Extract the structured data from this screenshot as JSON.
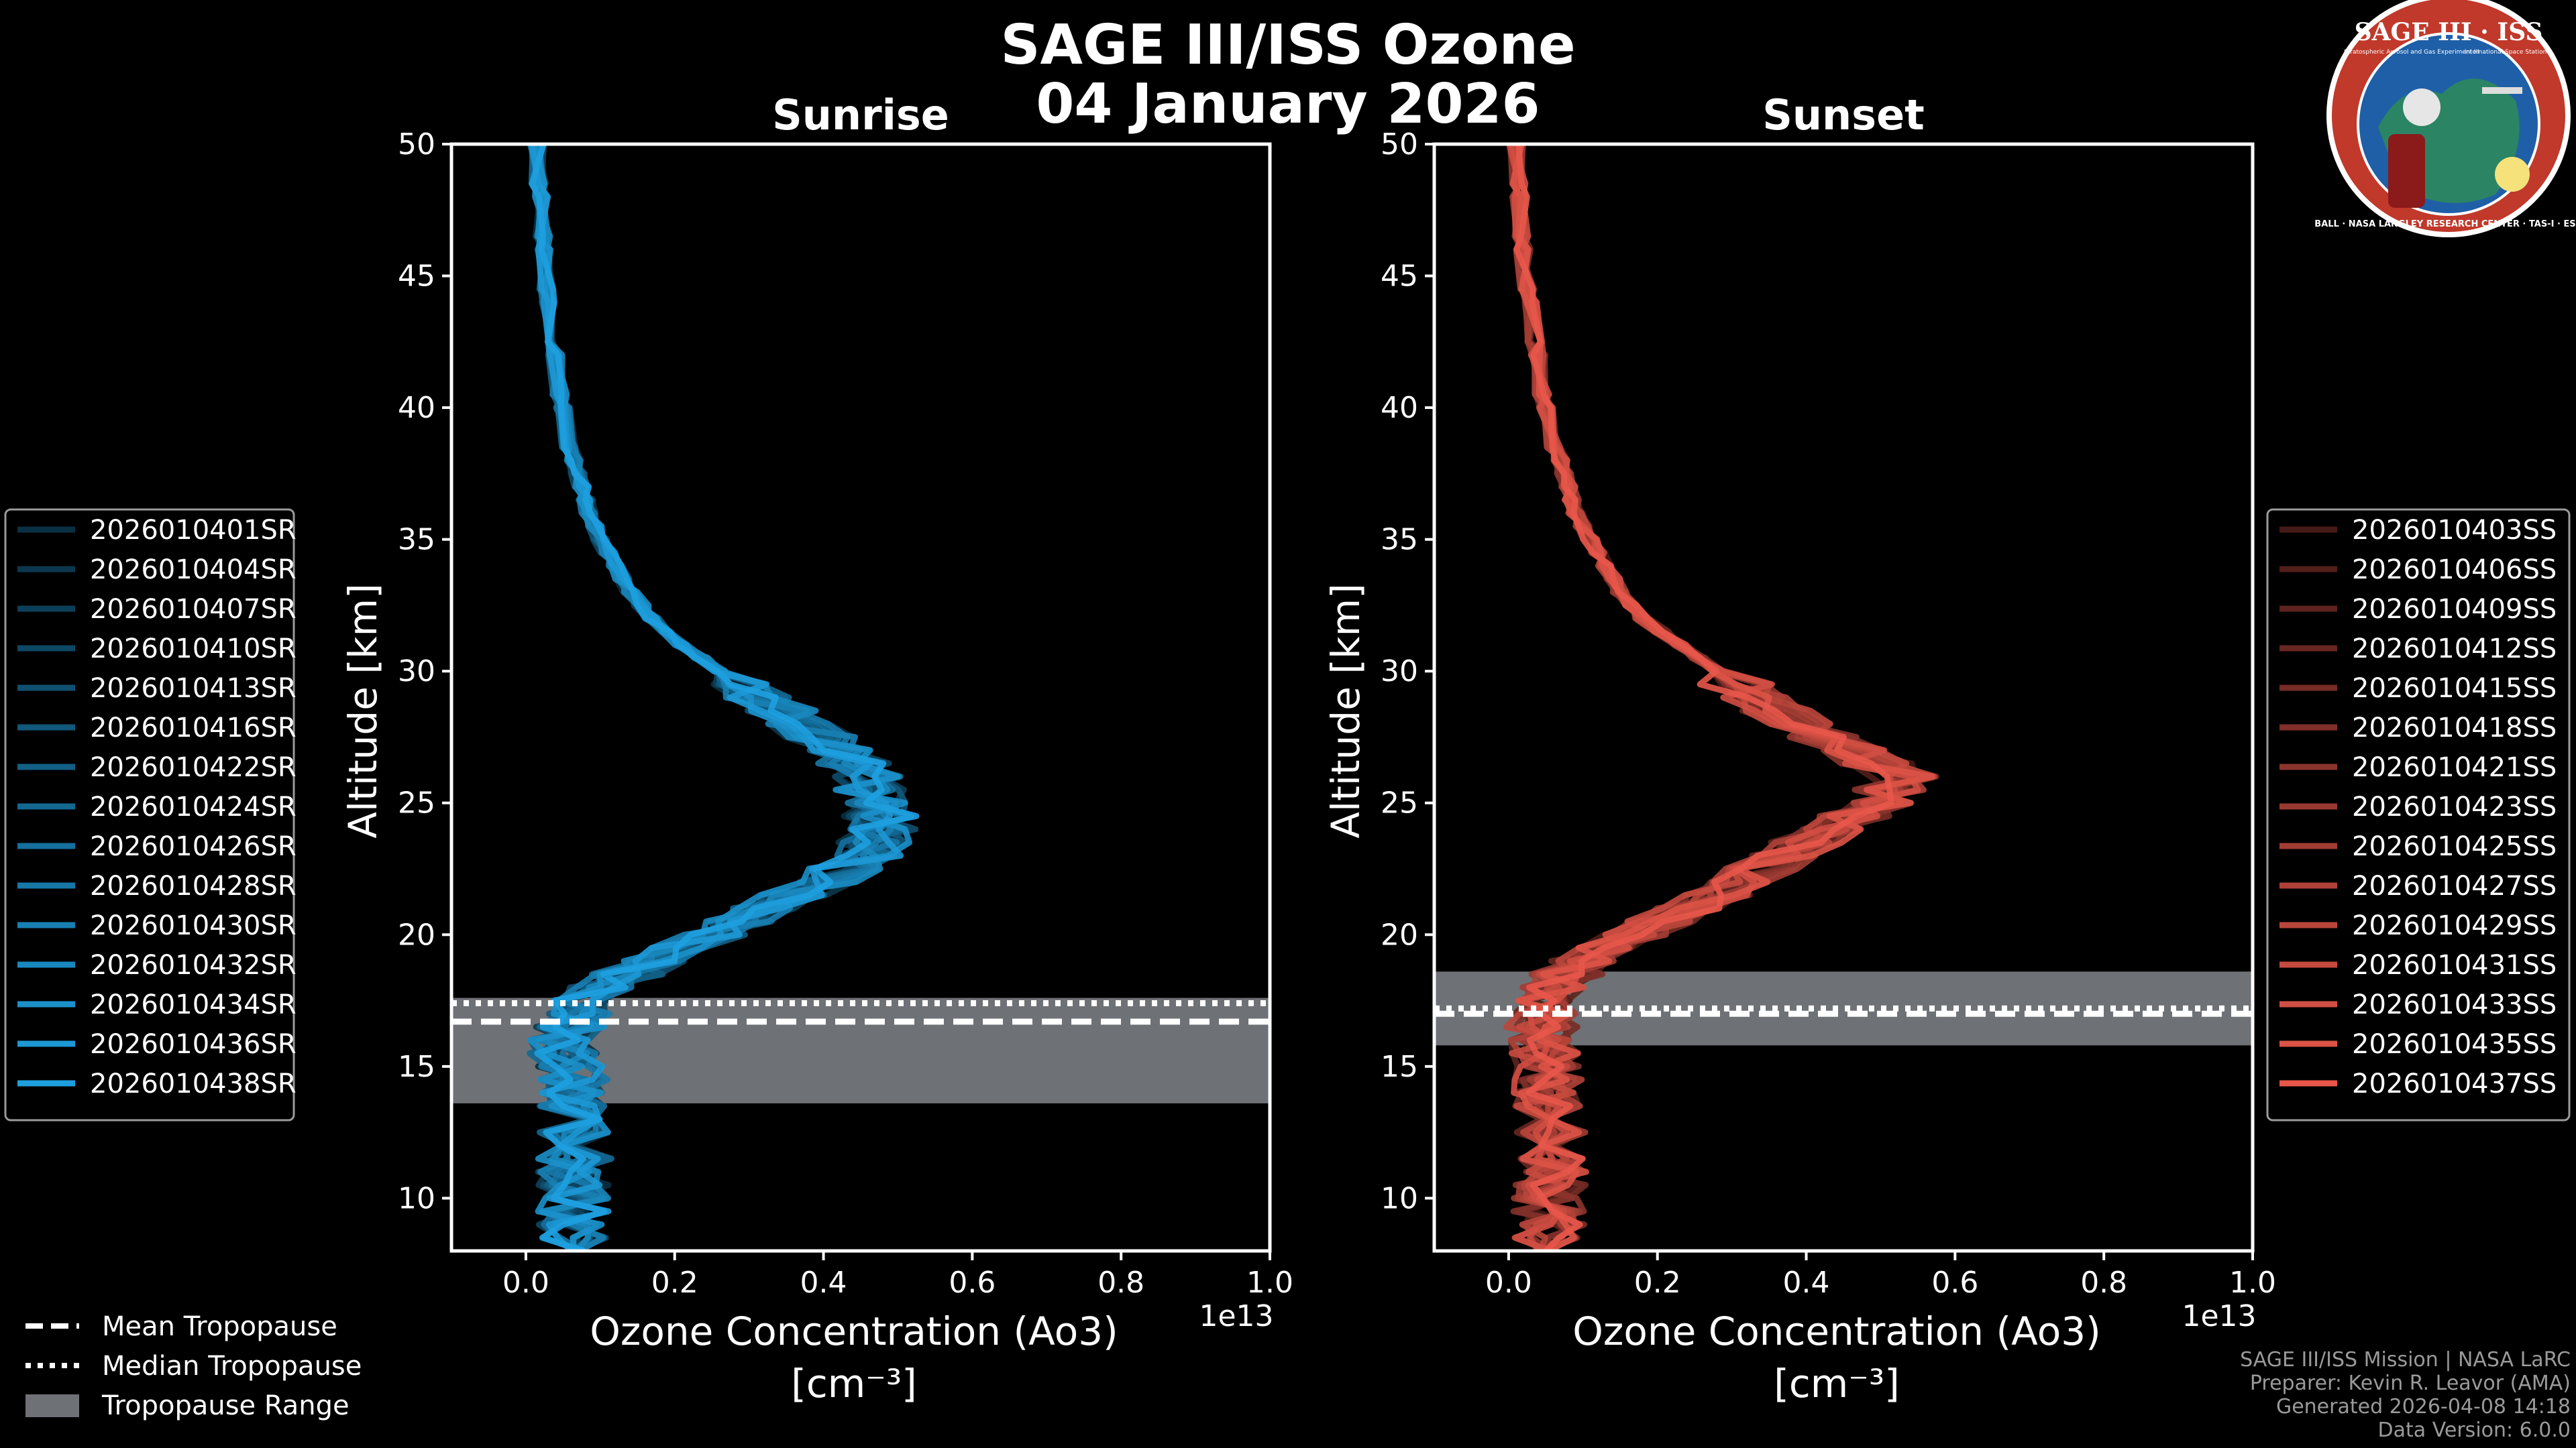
{
  "title": {
    "line1": "SAGE III/ISS Ozone",
    "line2": "04 January 2026"
  },
  "logo": {
    "top_text": "SAGE III · ISS",
    "small_left": "Stratospheric Aerosol and Gas Experiment III",
    "small_right": "International Space Station",
    "ring_text": "BALL · NASA LANGLEY RESEARCH CENTER · TAS-I · ESA",
    "colors": {
      "ring": "#c0392b",
      "inner": "#1f5fa8",
      "border": "#ffffff"
    }
  },
  "chart_data": [
    {
      "type": "line",
      "title": "Sunrise",
      "xlabel_line1": "Ozone Concentration (Ao3)",
      "xlabel_line2": "[cm⁻³]",
      "ylabel": "Altitude [km]",
      "x_offset_label": "1e13",
      "xlim": [
        -0.1,
        1.0
      ],
      "ylim": [
        8,
        50
      ],
      "xticks": [
        0.0,
        0.2,
        0.4,
        0.6,
        0.8,
        1.0
      ],
      "xtick_labels": [
        "0.0",
        "0.2",
        "0.4",
        "0.6",
        "0.8",
        "1.0"
      ],
      "yticks": [
        10,
        15,
        20,
        25,
        30,
        35,
        40,
        45,
        50
      ],
      "ytick_labels": [
        "10",
        "15",
        "20",
        "25",
        "30",
        "35",
        "40",
        "45",
        "50"
      ],
      "tropopause": {
        "mean": 16.7,
        "median": 17.4,
        "range": [
          13.6,
          17.6
        ]
      },
      "base_color": "#1ea0e0",
      "legend": {
        "placement": "left",
        "entries": [
          "2026010401SR",
          "2026010404SR",
          "2026010407SR",
          "2026010410SR",
          "2026010413SR",
          "2026010416SR",
          "2026010422SR",
          "2026010424SR",
          "2026010426SR",
          "2026010428SR",
          "2026010430SR",
          "2026010432SR",
          "2026010434SR",
          "2026010436SR",
          "2026010438SR"
        ]
      },
      "base_profile": {
        "alt": [
          8,
          9,
          10,
          11,
          12,
          13,
          14,
          15,
          16,
          17,
          18,
          19,
          20,
          21,
          22,
          23,
          24,
          25,
          26,
          27,
          28,
          29,
          30,
          31,
          32,
          33,
          34,
          35,
          36,
          37,
          38,
          40,
          42,
          44,
          46,
          48,
          50
        ],
        "val": [
          0.07,
          0.06,
          0.07,
          0.06,
          0.07,
          0.06,
          0.06,
          0.06,
          0.05,
          0.07,
          0.1,
          0.17,
          0.25,
          0.32,
          0.4,
          0.46,
          0.48,
          0.47,
          0.46,
          0.42,
          0.37,
          0.31,
          0.26,
          0.21,
          0.17,
          0.14,
          0.12,
          0.1,
          0.085,
          0.075,
          0.065,
          0.05,
          0.04,
          0.03,
          0.025,
          0.02,
          0.015
        ]
      }
    },
    {
      "type": "line",
      "title": "Sunset",
      "xlabel_line1": "Ozone Concentration (Ao3)",
      "xlabel_line2": "[cm⁻³]",
      "ylabel": "Altitude [km]",
      "x_offset_label": "1e13",
      "xlim": [
        -0.1,
        1.0
      ],
      "ylim": [
        8,
        50
      ],
      "xticks": [
        0.0,
        0.2,
        0.4,
        0.6,
        0.8,
        1.0
      ],
      "xtick_labels": [
        "0.0",
        "0.2",
        "0.4",
        "0.6",
        "0.8",
        "1.0"
      ],
      "yticks": [
        10,
        15,
        20,
        25,
        30,
        35,
        40,
        45,
        50
      ],
      "ytick_labels": [
        "10",
        "15",
        "20",
        "25",
        "30",
        "35",
        "40",
        "45",
        "50"
      ],
      "tropopause": {
        "mean": 17.0,
        "median": 17.2,
        "range": [
          15.8,
          18.6
        ]
      },
      "base_color": "#e8574a",
      "legend": {
        "placement": "right",
        "entries": [
          "2026010403SS",
          "2026010406SS",
          "2026010409SS",
          "2026010412SS",
          "2026010415SS",
          "2026010418SS",
          "2026010421SS",
          "2026010423SS",
          "2026010425SS",
          "2026010427SS",
          "2026010429SS",
          "2026010431SS",
          "2026010433SS",
          "2026010435SS",
          "2026010437SS"
        ]
      },
      "base_profile": {
        "alt": [
          8,
          9,
          10,
          11,
          12,
          13,
          14,
          15,
          16,
          17,
          18,
          19,
          20,
          21,
          22,
          23,
          24,
          25,
          26,
          27,
          28,
          29,
          30,
          31,
          32,
          33,
          34,
          35,
          36,
          37,
          38,
          40,
          42,
          44,
          46,
          48,
          50
        ],
        "val": [
          0.05,
          0.06,
          0.05,
          0.06,
          0.05,
          0.06,
          0.05,
          0.05,
          0.04,
          0.05,
          0.06,
          0.1,
          0.17,
          0.24,
          0.31,
          0.37,
          0.43,
          0.5,
          0.53,
          0.46,
          0.39,
          0.33,
          0.28,
          0.23,
          0.18,
          0.15,
          0.13,
          0.11,
          0.09,
          0.08,
          0.07,
          0.05,
          0.04,
          0.03,
          0.02,
          0.015,
          0.01
        ]
      }
    }
  ],
  "tropopause_legend": {
    "mean": "Mean Tropopause",
    "median": "Median Tropopause",
    "range": "Tropopause Range"
  },
  "footer": {
    "line1": "SAGE III/ISS Mission | NASA LaRC",
    "line2": "Preparer: Kevin R. Leavor (AMA)",
    "line3": "Generated 2026-04-08 14:18",
    "line4": "Data Version: 6.0.0"
  }
}
